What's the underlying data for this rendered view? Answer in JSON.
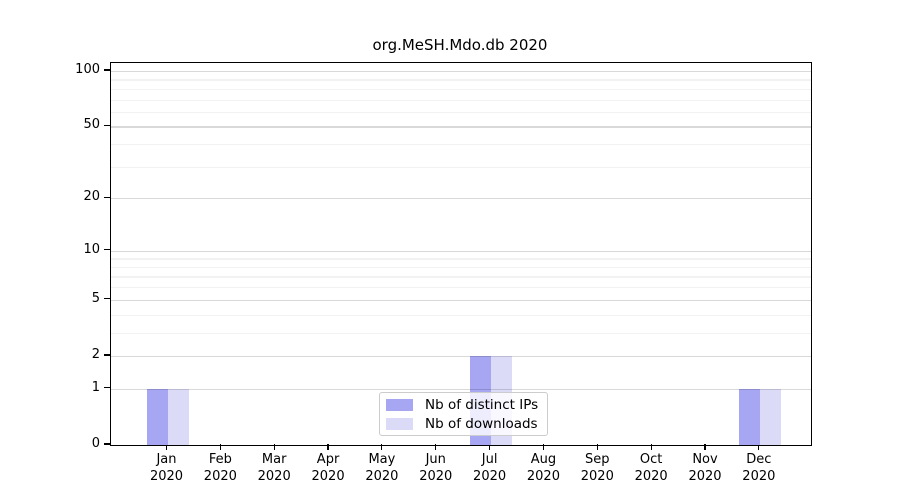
{
  "chart_data": {
    "type": "bar",
    "title": "org.MeSH.Mdo.db 2020",
    "categories": [
      "Jan",
      "Feb",
      "Mar",
      "Apr",
      "May",
      "Jun",
      "Jul",
      "Aug",
      "Sep",
      "Oct",
      "Nov",
      "Dec"
    ],
    "year_label": "2020",
    "series": [
      {
        "name": "Nb of distinct IPs",
        "color": "#a6a6f2",
        "values": [
          1,
          0,
          0,
          0,
          0,
          0,
          2,
          0,
          0,
          0,
          0,
          1
        ]
      },
      {
        "name": "Nb of downloads",
        "color": "#dbdbf8",
        "values": [
          1,
          0,
          0,
          0,
          0,
          0,
          2,
          0,
          0,
          0,
          0,
          1
        ]
      }
    ],
    "xlabel": "",
    "ylabel": "",
    "yscale": "log1p",
    "ylim": [
      0,
      110
    ],
    "y_major_ticks": [
      0,
      1,
      2,
      5,
      10,
      20,
      50,
      100
    ],
    "y_minor_gridlines": [
      3,
      4,
      6,
      7,
      8,
      9,
      30,
      40,
      60,
      70,
      80,
      90
    ],
    "grid": true,
    "legend_position": "lower center"
  },
  "colors": {
    "bar_distinct_ips": "#a6a6f2",
    "bar_downloads": "#dbdbf8",
    "grid_major": "#d9d9d9",
    "grid_minor": "#f2f2f2",
    "axis": "#000000",
    "legend_border": "#cccccc"
  }
}
